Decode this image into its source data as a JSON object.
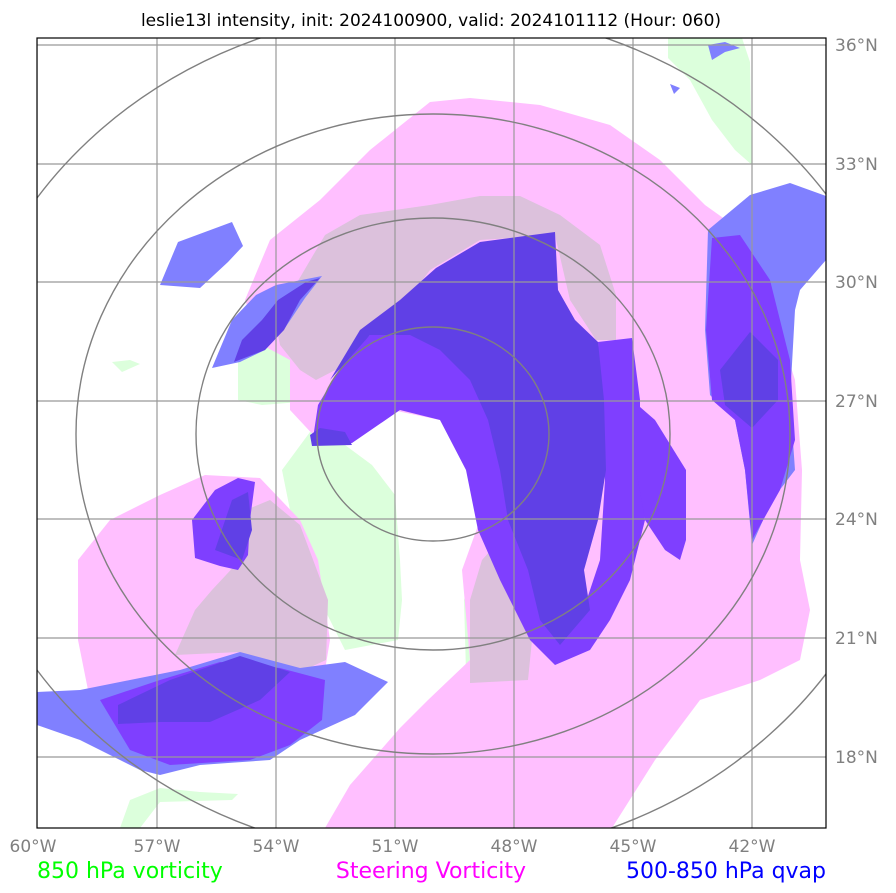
{
  "title": "leslie13l intensity, init: 2024100900, valid: 2024101112 (Hour: 060)",
  "lon_ticks": [
    "60°W",
    "57°W",
    "54°W",
    "51°W",
    "48°W",
    "45°W",
    "42°W"
  ],
  "lat_ticks": [
    "36°N",
    "33°N",
    "30°N",
    "27°N",
    "24°N",
    "21°N",
    "18°N"
  ],
  "legend": [
    {
      "label": "850 hPa vorticity",
      "color": "#00ff00"
    },
    {
      "label": "Steering Vorticity",
      "color": "#ff00ff"
    },
    {
      "label": "500-850 hPa qvap",
      "color": "#0000ff"
    }
  ],
  "colors": {
    "vorticity_850_fill": "#dcffdc",
    "steering_fill": "#ffbfff",
    "steering_overlap_fill": "#dcc1dc",
    "qvap_fill": "#8080ff",
    "qvap_dark_fill": "#7f3fff",
    "overlap_fill": "#6040e6",
    "grid": "#999999",
    "range_rings": "#808080"
  }
}
